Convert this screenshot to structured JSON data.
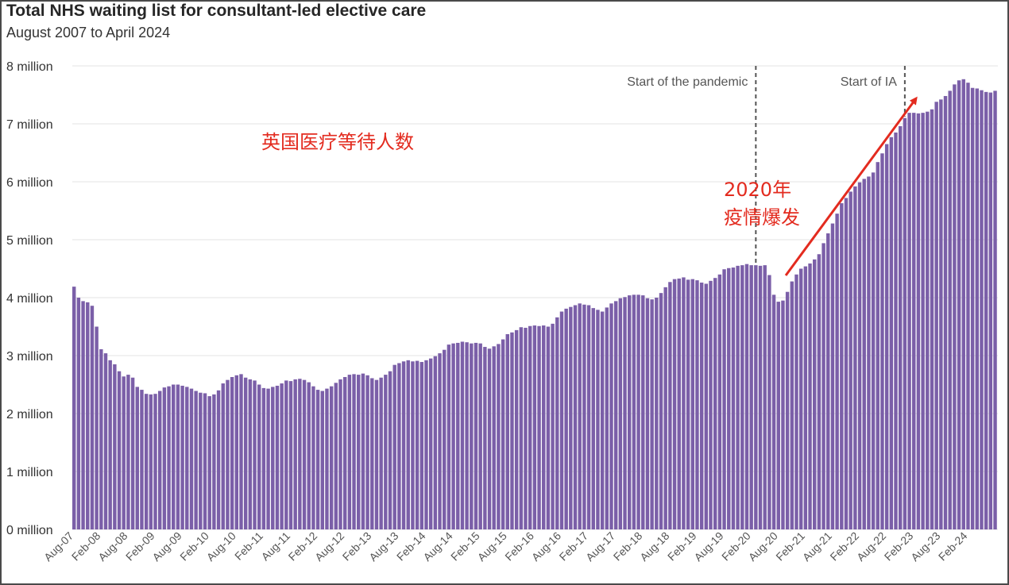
{
  "chart_data": {
    "type": "bar",
    "title": "Total NHS waiting list for consultant-led elective care",
    "subtitle": "August 2007 to April 2024",
    "ylim": [
      0,
      8
    ],
    "yticks": [
      {
        "value": 0,
        "label": "0 million"
      },
      {
        "value": 1,
        "label": "1 million"
      },
      {
        "value": 2,
        "label": "2 million"
      },
      {
        "value": 3,
        "label": "3 million"
      },
      {
        "value": 4,
        "label": "4 million"
      },
      {
        "value": 5,
        "label": "5 million"
      },
      {
        "value": 6,
        "label": "6 million"
      },
      {
        "value": 7,
        "label": "7 million"
      },
      {
        "value": 8,
        "label": "8 million"
      }
    ],
    "xtick_labels": [
      "Aug-07",
      "Feb-08",
      "Aug-08",
      "Feb-09",
      "Aug-09",
      "Feb-10",
      "Aug-10",
      "Feb-11",
      "Aug-11",
      "Feb-12",
      "Aug-12",
      "Feb-13",
      "Aug-13",
      "Feb-14",
      "Aug-14",
      "Feb-15",
      "Aug-15",
      "Feb-16",
      "Aug-16",
      "Feb-17",
      "Aug-17",
      "Feb-18",
      "Aug-18",
      "Feb-19",
      "Aug-19",
      "Feb-20",
      "Aug-20",
      "Feb-21",
      "Aug-21",
      "Feb-22",
      "Aug-22",
      "Feb-23",
      "Aug-23",
      "Feb-24"
    ],
    "grid": true,
    "bar_color": "#7b5fa8",
    "values": [
      4.19,
      4.0,
      3.94,
      3.92,
      3.86,
      3.5,
      3.11,
      3.04,
      2.92,
      2.85,
      2.73,
      2.64,
      2.67,
      2.62,
      2.46,
      2.41,
      2.34,
      2.33,
      2.34,
      2.39,
      2.45,
      2.47,
      2.5,
      2.5,
      2.48,
      2.46,
      2.43,
      2.39,
      2.36,
      2.35,
      2.3,
      2.33,
      2.4,
      2.52,
      2.58,
      2.63,
      2.66,
      2.68,
      2.62,
      2.59,
      2.57,
      2.5,
      2.44,
      2.43,
      2.46,
      2.48,
      2.52,
      2.57,
      2.56,
      2.59,
      2.6,
      2.58,
      2.54,
      2.47,
      2.41,
      2.39,
      2.43,
      2.47,
      2.53,
      2.59,
      2.63,
      2.67,
      2.68,
      2.67,
      2.69,
      2.66,
      2.61,
      2.58,
      2.62,
      2.67,
      2.73,
      2.84,
      2.87,
      2.9,
      2.92,
      2.9,
      2.91,
      2.89,
      2.92,
      2.95,
      2.99,
      3.04,
      3.1,
      3.19,
      3.21,
      3.22,
      3.24,
      3.23,
      3.21,
      3.22,
      3.21,
      3.15,
      3.12,
      3.16,
      3.2,
      3.28,
      3.37,
      3.4,
      3.44,
      3.49,
      3.48,
      3.51,
      3.52,
      3.51,
      3.52,
      3.5,
      3.55,
      3.66,
      3.76,
      3.81,
      3.84,
      3.87,
      3.9,
      3.88,
      3.87,
      3.82,
      3.79,
      3.76,
      3.83,
      3.9,
      3.94,
      3.99,
      4.01,
      4.04,
      4.05,
      4.05,
      4.04,
      3.99,
      3.97,
      4.0,
      4.08,
      4.18,
      4.27,
      4.32,
      4.33,
      4.35,
      4.31,
      4.32,
      4.3,
      4.26,
      4.24,
      4.29,
      4.34,
      4.4,
      4.49,
      4.51,
      4.52,
      4.55,
      4.56,
      4.58,
      4.56,
      4.56,
      4.55,
      4.56,
      4.39,
      4.05,
      3.93,
      3.95,
      4.1,
      4.28,
      4.4,
      4.5,
      4.54,
      4.59,
      4.66,
      4.75,
      4.94,
      5.11,
      5.28,
      5.45,
      5.63,
      5.72,
      5.83,
      5.92,
      5.99,
      6.05,
      6.09,
      6.16,
      6.34,
      6.49,
      6.65,
      6.77,
      6.85,
      6.96,
      7.1,
      7.19,
      7.19,
      7.18,
      7.19,
      7.21,
      7.25,
      7.38,
      7.42,
      7.48,
      7.57,
      7.68,
      7.75,
      7.77,
      7.71,
      7.62,
      7.61,
      7.58,
      7.55,
      7.54,
      7.57
    ],
    "events": [
      {
        "label": "Start of the pandemic",
        "index": 151
      },
      {
        "label": "Start of IA",
        "index": 184
      }
    ],
    "annotations": {
      "main": "英国医疗等待人数",
      "arrow_line1": "2020年",
      "arrow_line2": "疫情爆发",
      "arrow_color": "#e32b1f"
    }
  }
}
